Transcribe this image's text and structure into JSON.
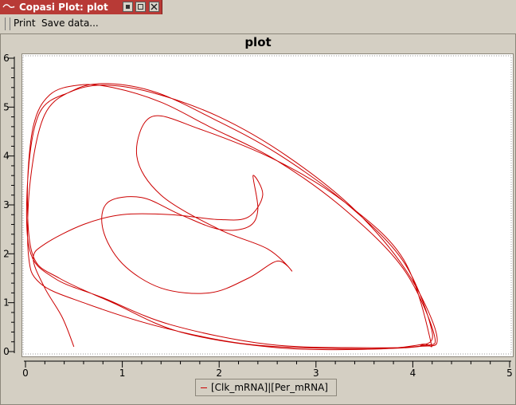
{
  "window": {
    "title": "Copasi Plot: plot"
  },
  "menu": {
    "print": "Print",
    "save_data": "Save data..."
  },
  "plot": {
    "title": "plot"
  },
  "chart_data": {
    "type": "line",
    "title": "plot",
    "xlabel": "",
    "ylabel": "",
    "xlim": [
      0,
      5
    ],
    "ylim": [
      0,
      6
    ],
    "xticks": [
      "0",
      "1",
      "2",
      "3",
      "4",
      "5"
    ],
    "yticks": [
      "0",
      "1",
      "2",
      "3",
      "4",
      "5",
      "6"
    ],
    "line_color": "#cc0000",
    "series": [
      {
        "name": "[Clk_mRNA]|[Per_mRNA]",
        "x": [
          0.5,
          0.38,
          0.2,
          0.08,
          0.2,
          0.6,
          1.0,
          1.5,
          2.0,
          2.3,
          2.45,
          2.35,
          2.4,
          2.3,
          2.0,
          1.6,
          1.2,
          0.85,
          0.8,
          1.0,
          1.4,
          1.9,
          2.3,
          2.6,
          2.75,
          2.5,
          2.0,
          1.4,
          1.15,
          1.3,
          1.8,
          2.6,
          3.3,
          3.9,
          4.18,
          4.1,
          3.6,
          2.6,
          1.6,
          0.9,
          0.35,
          0.08,
          0.02,
          0.08,
          0.25,
          0.55,
          0.9,
          1.4,
          1.9,
          2.6,
          3.3,
          3.9,
          4.22,
          4.1,
          3.5,
          2.5,
          1.5,
          0.8,
          0.3,
          0.04,
          0.03,
          0.15,
          0.45,
          0.8,
          1.3,
          2.0,
          2.7,
          3.4,
          3.95,
          4.25,
          4.05,
          3.3,
          2.3,
          1.4,
          0.6,
          0.15,
          0.03,
          0.05,
          0.2,
          0.5,
          0.85,
          1.35,
          1.95,
          2.6,
          3.3,
          3.9,
          4.2,
          4.08
        ],
        "y": [
          0.1,
          0.7,
          1.3,
          1.9,
          2.2,
          2.6,
          2.8,
          2.8,
          2.7,
          2.75,
          3.2,
          3.6,
          2.9,
          2.55,
          2.5,
          2.8,
          3.15,
          3.05,
          2.5,
          1.8,
          1.3,
          1.2,
          1.5,
          1.85,
          1.65,
          2.1,
          2.5,
          3.2,
          4.0,
          4.8,
          4.55,
          3.9,
          3.05,
          1.9,
          0.25,
          0.15,
          0.05,
          0.08,
          0.4,
          1.0,
          1.5,
          1.95,
          3.2,
          4.6,
          5.25,
          5.45,
          5.4,
          5.1,
          4.6,
          3.9,
          2.9,
          1.7,
          0.35,
          0.12,
          0.08,
          0.15,
          0.55,
          1.1,
          1.5,
          2.1,
          3.7,
          4.9,
          5.3,
          5.45,
          5.3,
          4.8,
          4.0,
          2.9,
          1.6,
          0.3,
          0.1,
          0.06,
          0.15,
          0.5,
          1.0,
          1.4,
          2.0,
          3.5,
          4.85,
          5.35,
          5.48,
          5.3,
          4.75,
          4.05,
          3.05,
          1.85,
          0.4,
          0.12
        ]
      }
    ]
  }
}
